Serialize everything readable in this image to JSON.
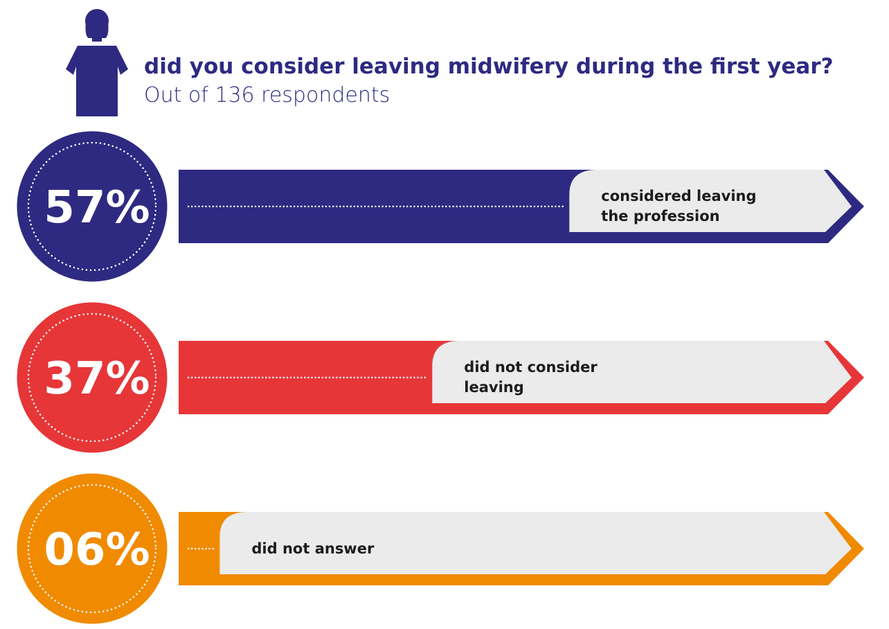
{
  "chart_data": {
    "type": "bar",
    "title": "did you consider leaving midwifery during the first year?",
    "subtitle": "Out of 136 respondents",
    "categories": [
      "considered leaving the profession",
      "did not consider leaving",
      "did not answer"
    ],
    "values": [
      57,
      37,
      6
    ],
    "value_labels": [
      "57%",
      "37%",
      "06%"
    ],
    "colors": [
      "#2e2a82",
      "#e63638",
      "#f08a00"
    ],
    "xlim": [
      0,
      100
    ]
  }
}
